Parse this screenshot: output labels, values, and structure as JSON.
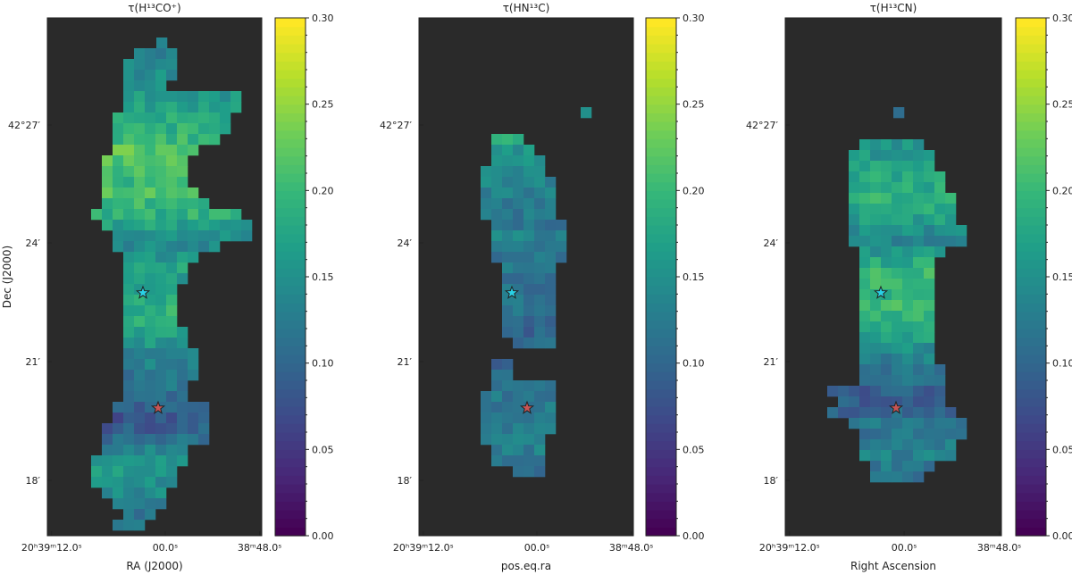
{
  "chart_data": [
    {
      "type": "heatmap",
      "title": "τ(H¹³CO⁺)",
      "xlabel": "RA (J2000)",
      "ylabel": "Dec (J2000)",
      "x_ticks": [
        "20ʰ39ᵐ12.0ˢ",
        "00.0ˢ",
        "38ᵐ48.0ˢ"
      ],
      "y_ticks": [
        "42°27′",
        "24′",
        "21′",
        "18′"
      ],
      "colorbar": {
        "min": 0.0,
        "max": 0.3,
        "colormap": "viridis",
        "ticks": [
          "0.00",
          "0.05",
          "0.10",
          "0.15",
          "0.20",
          "0.25",
          "0.30"
        ]
      },
      "markers": [
        {
          "type": "star",
          "color": "#29d1e6"
        },
        {
          "type": "star",
          "color": "#c85454"
        }
      ],
      "background_color": "#2a2a2a"
    },
    {
      "type": "heatmap",
      "title": "τ(HN¹³C)",
      "xlabel": "pos.eq.ra",
      "ylabel": "",
      "x_ticks": [
        "20ʰ39ᵐ12.0ˢ",
        "00.0ˢ",
        "38ᵐ48.0ˢ"
      ],
      "y_ticks": [
        "42°27′",
        "24′",
        "21′",
        "18′"
      ],
      "colorbar": {
        "min": 0.0,
        "max": 0.3,
        "colormap": "viridis",
        "ticks": [
          "0.00",
          "0.05",
          "0.10",
          "0.15",
          "0.20",
          "0.25",
          "0.30"
        ]
      },
      "markers": [
        {
          "type": "star",
          "color": "#29d1e6"
        },
        {
          "type": "star",
          "color": "#c85454"
        }
      ],
      "background_color": "#2a2a2a"
    },
    {
      "type": "heatmap",
      "title": "τ(H¹³CN)",
      "xlabel": "Right Ascension",
      "ylabel": "",
      "x_ticks": [
        "20ʰ39ᵐ12.0ˢ",
        "00.0ˢ",
        "38ᵐ48.0ˢ"
      ],
      "y_ticks": [
        "42°27′",
        "24′",
        "21′",
        "18′"
      ],
      "colorbar": {
        "min": 0.0,
        "max": 0.3,
        "colormap": "viridis",
        "ticks": [
          "0.00",
          "0.05",
          "0.10",
          "0.15",
          "0.20",
          "0.25",
          "0.30"
        ]
      },
      "markers": [
        {
          "type": "star",
          "color": "#29d1e6"
        },
        {
          "type": "star",
          "color": "#c85454"
        }
      ],
      "background_color": "#2a2a2a"
    }
  ]
}
